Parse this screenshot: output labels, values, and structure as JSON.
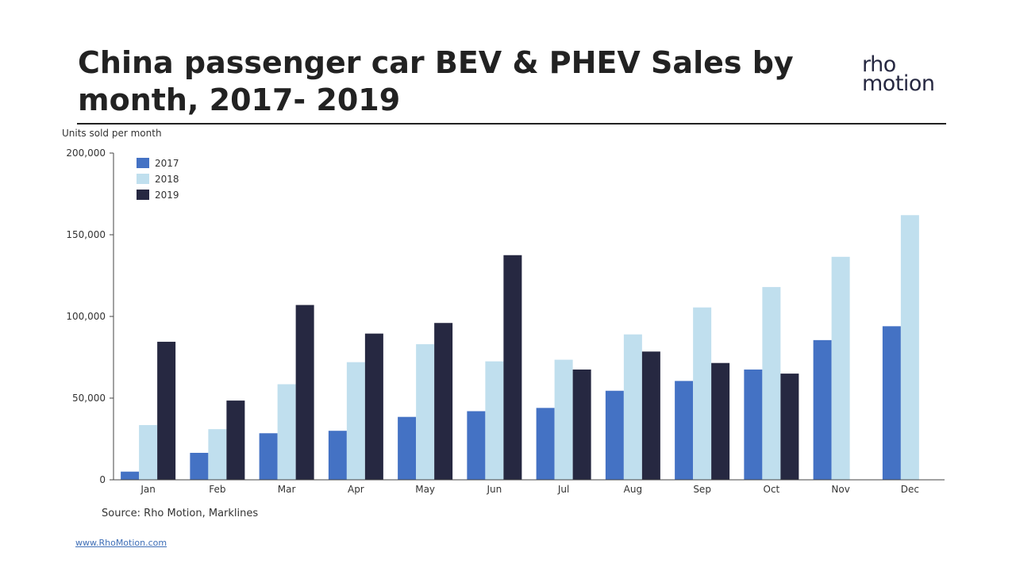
{
  "header": {
    "title": "China passenger car BEV & PHEV Sales by month, 2017- 2019",
    "logo_line1": "rho",
    "logo_line2": "motion"
  },
  "footer": {
    "source": "Source: Rho Motion, Marklines",
    "website": "www.RhoMotion.com"
  },
  "chart_data": {
    "type": "bar",
    "title": "China passenger car BEV & PHEV Sales by month, 2017- 2019",
    "ylabel": "Units sold per month",
    "xlabel": "",
    "ylim": [
      0,
      200000
    ],
    "yticks": [
      "0",
      "50,000",
      "100,000",
      "150,000",
      "200,000"
    ],
    "ytick_values": [
      0,
      50000,
      100000,
      150000,
      200000
    ],
    "grid": false,
    "legend_position": "top-left",
    "categories": [
      "Jan",
      "Feb",
      "Mar",
      "Apr",
      "May",
      "Jun",
      "Jul",
      "Aug",
      "Sep",
      "Oct",
      "Nov",
      "Dec"
    ],
    "series": [
      {
        "name": "2017",
        "color": "#4472c4",
        "values": [
          5000,
          16500,
          28500,
          30000,
          38500,
          42000,
          44000,
          54500,
          60500,
          67500,
          85500,
          94000
        ]
      },
      {
        "name": "2018",
        "color": "#c0dfee",
        "values": [
          33500,
          31000,
          58500,
          72000,
          83000,
          72500,
          73500,
          89000,
          105500,
          118000,
          136500,
          162000
        ]
      },
      {
        "name": "2019",
        "color": "#262841",
        "values": [
          84500,
          48500,
          107000,
          89500,
          96000,
          137500,
          67500,
          78500,
          71500,
          65000,
          null,
          null
        ]
      }
    ]
  }
}
